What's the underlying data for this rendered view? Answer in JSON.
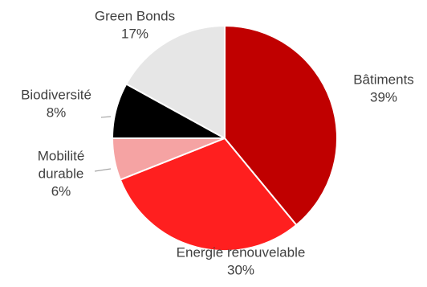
{
  "chart_data": {
    "type": "pie",
    "title": "",
    "slices": [
      {
        "label": "Bâtiments",
        "label_lines": [
          "Bâtiments"
        ],
        "value": 39,
        "value_label": "39%",
        "color": "#c00000"
      },
      {
        "label": "Energie renouvelable",
        "label_lines": [
          "Energie renouvelable"
        ],
        "value": 30,
        "value_label": "30%",
        "color": "#ff1f1f"
      },
      {
        "label": "Mobilité durable",
        "label_lines": [
          "Mobilité",
          "durable"
        ],
        "value": 6,
        "value_label": "6%",
        "color": "#f5a3a3"
      },
      {
        "label": "Biodiversité",
        "label_lines": [
          "Biodiversité"
        ],
        "value": 8,
        "value_label": "8%",
        "color": "#000000"
      },
      {
        "label": "Green Bonds",
        "label_lines": [
          "Green Bonds"
        ],
        "value": 17,
        "value_label": "17%",
        "color": "#e6e6e6"
      }
    ],
    "start_angle_deg": 0,
    "direction": "clockwise",
    "slice_border_color": "#ffffff",
    "leader_line_color": "#a6a6a6"
  }
}
